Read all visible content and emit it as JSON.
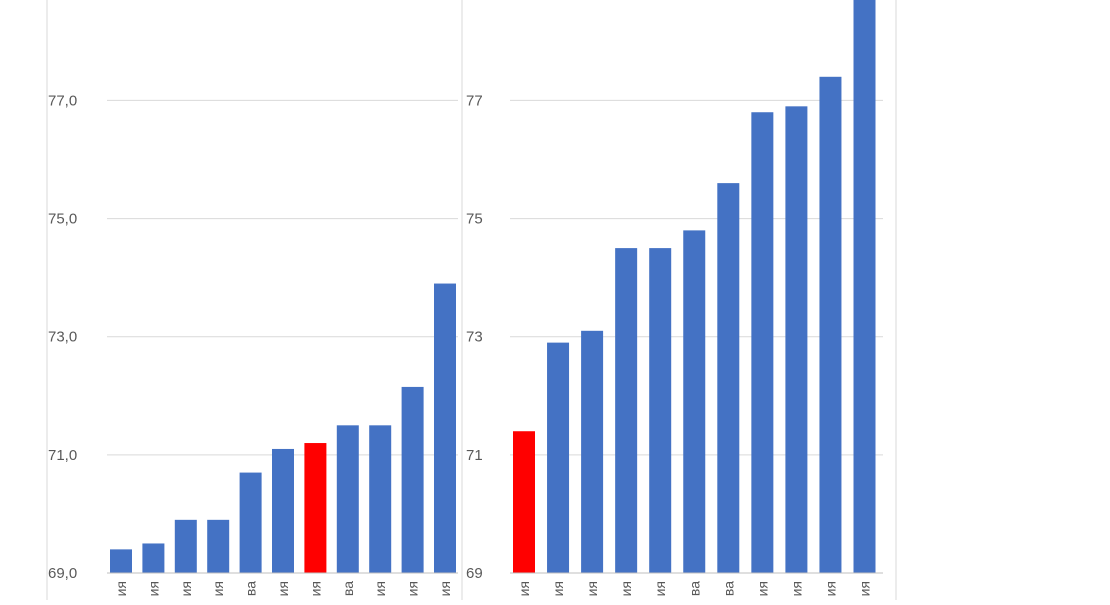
{
  "chart_data": [
    {
      "type": "bar",
      "y_tick_labels": [
        "69,0",
        "71,0",
        "73,0",
        "75,0",
        "77,0"
      ],
      "y_ticks": [
        69,
        71,
        73,
        75,
        77
      ],
      "ylim": [
        69,
        78.7
      ],
      "grid": true,
      "categories": [
        "ия",
        "ия",
        "ия",
        "ия",
        "ва",
        "ия",
        "ия",
        "ва",
        "ия",
        "ия",
        "ия"
      ],
      "values": [
        69.4,
        69.5,
        69.9,
        69.9,
        70.7,
        71.1,
        71.2,
        71.5,
        71.5,
        72.15,
        73.9
      ],
      "highlight_index": 6,
      "colors": {
        "bar": "#4472c4",
        "highlight": "#ff0000",
        "grid": "#d9d9d9",
        "tick_text": "#595959"
      }
    },
    {
      "type": "bar",
      "y_tick_labels": [
        "69",
        "71",
        "73",
        "75",
        "77"
      ],
      "y_ticks": [
        69,
        71,
        73,
        75,
        77
      ],
      "ylim": [
        69,
        78.7
      ],
      "grid": true,
      "categories": [
        "ия",
        "ия",
        "ия",
        "ия",
        "ия",
        "ва",
        "ва",
        "ия",
        "ия",
        "ия",
        "ия"
      ],
      "values": [
        71.4,
        72.9,
        73.1,
        74.5,
        74.5,
        74.8,
        75.6,
        76.8,
        76.9,
        77.4,
        78.7
      ],
      "highlight_index": 0,
      "colors": {
        "bar": "#4472c4",
        "highlight": "#ff0000",
        "grid": "#d9d9d9",
        "tick_text": "#595959"
      }
    }
  ]
}
